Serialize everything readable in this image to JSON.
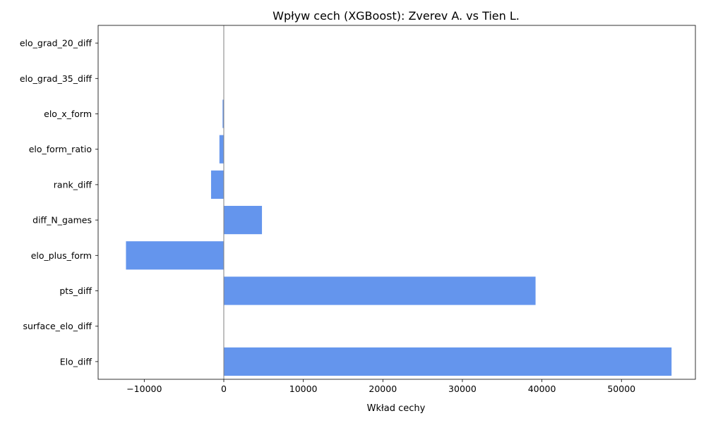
{
  "chart_data": {
    "type": "bar",
    "orientation": "horizontal",
    "title": "Wpływ cech (XGBoost): Zverev A. vs Tien L.",
    "xlabel": "Wkład cechy",
    "ylabel": "",
    "categories": [
      "Elo_diff",
      "surface_elo_diff",
      "pts_diff",
      "elo_plus_form",
      "diff_N_games",
      "rank_diff",
      "elo_form_ratio",
      "elo_x_form",
      "elo_grad_35_diff",
      "elo_grad_20_diff"
    ],
    "values": [
      56300,
      0,
      39200,
      -12300,
      4800,
      -1600,
      -550,
      -150,
      0,
      0
    ],
    "xlim": [
      -15800,
      59300
    ],
    "xticks": [
      -10000,
      0,
      10000,
      20000,
      30000,
      40000,
      50000
    ],
    "xtick_labels": [
      "−10000",
      "0",
      "10000",
      "20000",
      "30000",
      "40000",
      "50000"
    ],
    "bar_color": "#6495ED",
    "zero_line_color": "#808080",
    "grid": false,
    "legend": "none"
  }
}
